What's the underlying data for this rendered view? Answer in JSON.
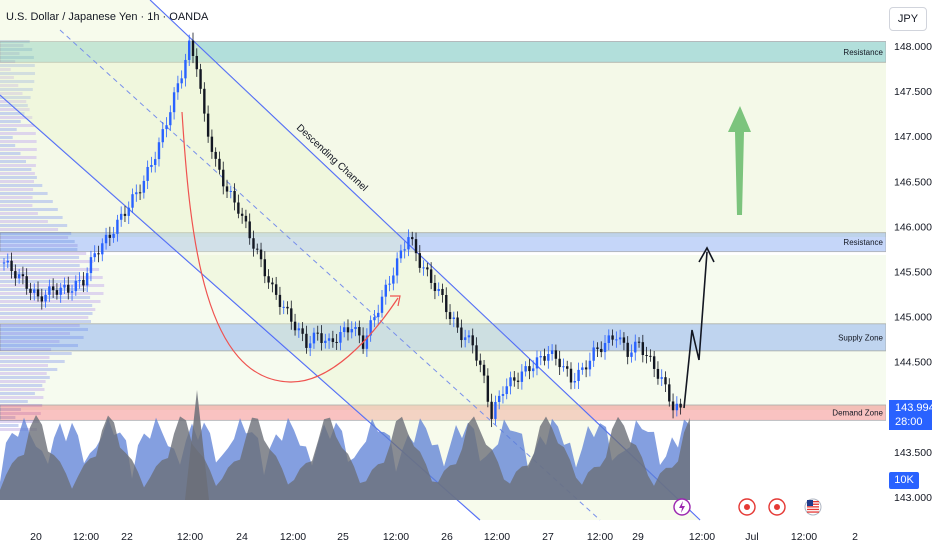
{
  "header": {
    "title": "U.S. Dollar / Japanese Yen · 1h · OANDA",
    "currency_button": "JPY"
  },
  "price_axis": {
    "last_price": "143.994",
    "countdown": "28:00",
    "volume_badge": "10K"
  },
  "colors": {
    "up_candle": "#2962ff",
    "down_candle": "#131722",
    "channel": "#3d5afe",
    "resistance_zone": "#26a69a",
    "blue_zone": "#5b8def",
    "demand_zone": "#ef5350",
    "curve": "#ef5350",
    "target_arrow": "#66bb6a",
    "volume_up": "#5b7fd6",
    "volume_down": "#6b6f78"
  },
  "annotations": {
    "channel_label": "Descending Channel",
    "zones": [
      {
        "label": "Resistance",
        "from": 147.82,
        "to": 148.05
      },
      {
        "label": "Resistance",
        "from": 145.72,
        "to": 145.93
      },
      {
        "label": "Supply Zone",
        "from": 144.62,
        "to": 144.92
      },
      {
        "label": "Demand Zone",
        "from": 143.85,
        "to": 144.02
      }
    ]
  },
  "event_icons": [
    "lightning-icon",
    "event-dot-icon",
    "event-dot-icon",
    "us-flag-icon"
  ],
  "chart_data": {
    "type": "candlestick",
    "symbol": "USDJPY",
    "timeframe": "1h",
    "ylim": [
      142.9,
      148.3
    ],
    "y_ticks": [
      "148.000",
      "147.500",
      "147.000",
      "146.500",
      "146.000",
      "145.500",
      "145.000",
      "144.500",
      "144.000",
      "143.500",
      "143.000"
    ],
    "x_ticks": [
      "20",
      "12:00",
      "22",
      "12:00",
      "24",
      "12:00",
      "25",
      "12:00",
      "26",
      "12:00",
      "27",
      "12:00",
      "29",
      "12:00",
      "Jul",
      "12:00",
      "2"
    ],
    "price_path": [
      [
        0,
        145.6
      ],
      [
        5,
        145.4
      ],
      [
        9,
        145.2
      ],
      [
        13,
        145.3
      ],
      [
        17,
        145.3
      ],
      [
        21,
        145.4
      ],
      [
        24,
        145.7
      ],
      [
        28,
        145.9
      ],
      [
        31,
        146.1
      ],
      [
        34,
        146.3
      ],
      [
        37,
        146.5
      ],
      [
        41,
        146.9
      ],
      [
        44,
        147.3
      ],
      [
        47,
        147.7
      ],
      [
        49,
        148.0
      ],
      [
        51,
        147.8
      ],
      [
        53,
        147.2
      ],
      [
        56,
        146.7
      ],
      [
        59,
        146.4
      ],
      [
        62,
        146.2
      ],
      [
        65,
        145.9
      ],
      [
        68,
        145.6
      ],
      [
        71,
        145.3
      ],
      [
        74,
        145.1
      ],
      [
        77,
        144.9
      ],
      [
        80,
        144.7
      ],
      [
        83,
        144.8
      ],
      [
        86,
        144.7
      ],
      [
        89,
        144.8
      ],
      [
        92,
        144.9
      ],
      [
        95,
        144.7
      ],
      [
        98,
        145.0
      ],
      [
        101,
        145.3
      ],
      [
        104,
        145.6
      ],
      [
        107,
        145.9
      ],
      [
        110,
        145.6
      ],
      [
        113,
        145.4
      ],
      [
        116,
        145.2
      ],
      [
        118,
        145.0
      ],
      [
        121,
        144.8
      ],
      [
        124,
        144.7
      ],
      [
        127,
        144.3
      ],
      [
        129,
        143.9
      ],
      [
        132,
        144.2
      ],
      [
        135,
        144.3
      ],
      [
        138,
        144.4
      ],
      [
        141,
        144.5
      ],
      [
        144,
        144.6
      ],
      [
        147,
        144.5
      ],
      [
        150,
        144.3
      ],
      [
        153,
        144.4
      ],
      [
        156,
        144.6
      ],
      [
        159,
        144.7
      ],
      [
        162,
        144.8
      ],
      [
        165,
        144.6
      ],
      [
        168,
        144.7
      ],
      [
        171,
        144.5
      ],
      [
        174,
        144.3
      ],
      [
        177,
        144.0
      ],
      [
        180,
        143.95
      ]
    ],
    "volume_profile": "left-side horizontal volume histogram"
  }
}
